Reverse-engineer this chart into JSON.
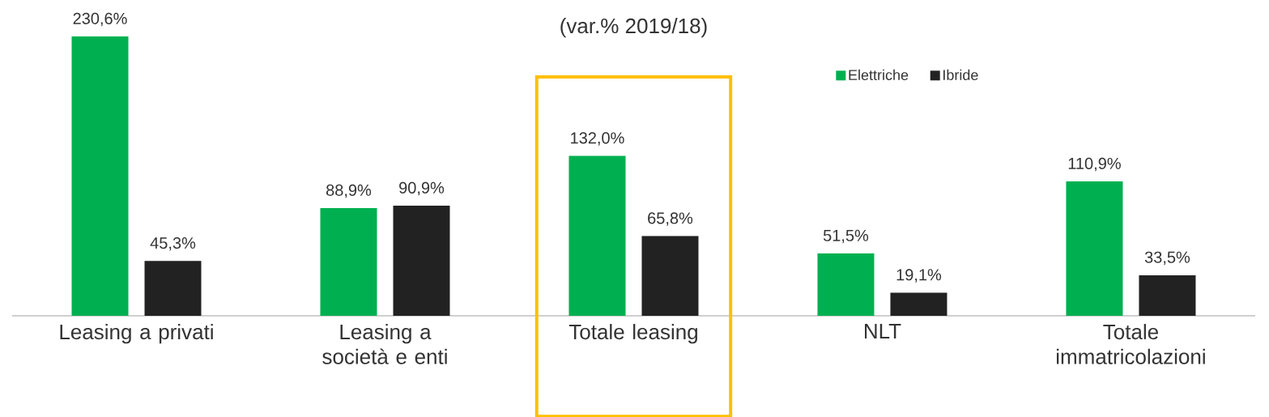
{
  "chart_data": {
    "type": "bar",
    "title": "(var.% 2019/18)",
    "categories": [
      "Leasing a privati",
      "Leasing a società e enti",
      "Totale leasing",
      "NLT",
      "Totale immatricolazioni"
    ],
    "series": [
      {
        "name": "Elettriche",
        "color": "#00b050",
        "values": [
          230.6,
          88.9,
          132.0,
          51.5,
          110.9
        ],
        "value_labels": [
          "230,6%",
          "88,9%",
          "132,0%",
          "51,5%",
          "110,9%"
        ]
      },
      {
        "name": "Ibride",
        "color": "#222222",
        "values": [
          45.3,
          90.9,
          65.8,
          19.1,
          33.5
        ],
        "value_labels": [
          "45,3%",
          "90,9%",
          "65,8%",
          "19,1%",
          "33,5%"
        ]
      }
    ],
    "legend": "top right"
  }
}
